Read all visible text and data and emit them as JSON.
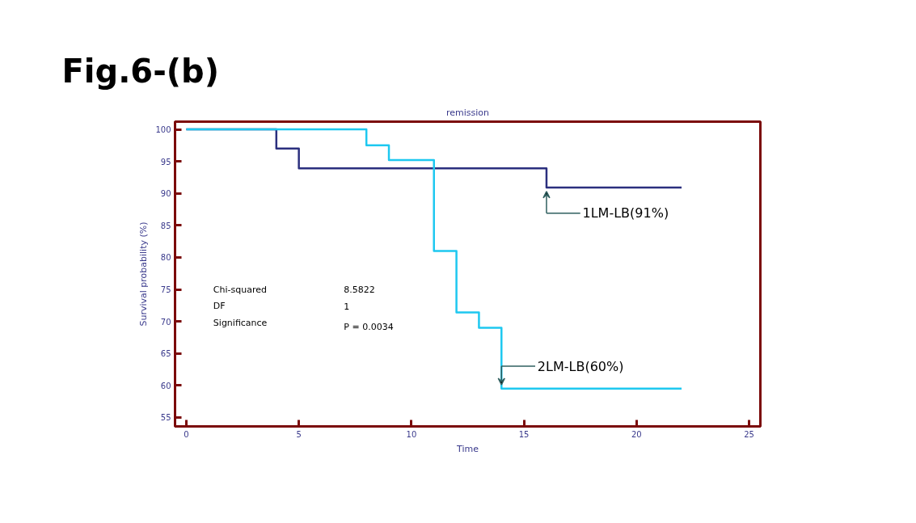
{
  "chart_data": {
    "type": "step",
    "title": "Fig.6-(b)",
    "subtitle": "remission",
    "xlabel": "Time",
    "ylabel": "Survival probability (%)",
    "xlim": [
      -0.5,
      25.5
    ],
    "xticks": [
      0,
      5,
      10,
      15,
      20,
      25
    ],
    "ylim": [
      53.6,
      101.2
    ],
    "yticks": [
      55,
      60,
      65,
      70,
      75,
      80,
      85,
      90,
      95,
      100
    ],
    "grid": false,
    "series": [
      {
        "name": "1LM-LB(91%)",
        "color": "#2b2f7e",
        "x": [
          0,
          4,
          5,
          16,
          22
        ],
        "values": [
          100,
          97,
          93.9,
          90.9,
          90.9
        ]
      },
      {
        "name": "2LM-LB(60%)",
        "color": "#1ec8f0",
        "x": [
          0,
          8,
          9,
          11,
          12,
          13,
          14,
          22
        ],
        "values": [
          100,
          97.5,
          95.2,
          81,
          71.4,
          69,
          59.5,
          59.5
        ]
      }
    ],
    "annotations": [
      "Chi-squared",
      "8.5822",
      "DF",
      "1",
      "Significance",
      "P = 0.0034"
    ]
  }
}
